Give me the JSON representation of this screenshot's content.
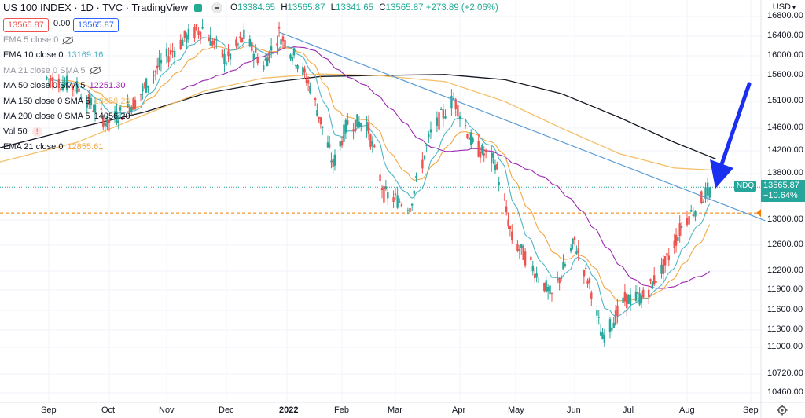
{
  "header": {
    "symbol": "US 100 INDEX · 1D · TVC · TradingView",
    "ohlc": [
      {
        "k": "O",
        "v": "13384.65"
      },
      {
        "k": "H",
        "v": "13565.87"
      },
      {
        "k": "L",
        "v": "13341.65"
      },
      {
        "k": "C",
        "v": "13565.87 +273.89 (+2.06%)"
      }
    ],
    "bid": "13565.87",
    "spread": "0.00",
    "ask": "13565.87"
  },
  "legend": [
    {
      "label": "EMA 5 close 0",
      "value": "",
      "color": "#9598a1",
      "faded": true,
      "icon": "eye-crossed-icon"
    },
    {
      "label": "EMA 10 close 0",
      "value": "13169.16",
      "color": "#4fb6c6",
      "faded": false,
      "icon": ""
    },
    {
      "label": "MA 21 close 0 SMA 5",
      "value": "",
      "color": "#9598a1",
      "faded": true,
      "icon": "eye-crossed-icon"
    },
    {
      "label": "MA 50 close 0 SMA 5",
      "value": "12251.30",
      "color": "#9c27b0",
      "faded": false,
      "icon": ""
    },
    {
      "label": "MA 150 close 0 SMA 5",
      "value": "13858.23",
      "color": "#f4c06a",
      "faded": false,
      "icon": ""
    },
    {
      "label": "MA 200 close 0 SMA 5",
      "value": "14056.20",
      "color": "#131722",
      "faded": false,
      "icon": ""
    },
    {
      "label": "Vol 50",
      "value": "",
      "color": "#131722",
      "faded": false,
      "icon": "warning-icon"
    },
    {
      "label": "EMA 21 close 0",
      "value": "12855.61",
      "color": "#f4a742",
      "faded": false,
      "icon": ""
    }
  ],
  "price_axis": {
    "currency": "USD",
    "labels": [
      "16800.00",
      "16400.00",
      "16000.00",
      "15600.00",
      "15100.00",
      "14600.00",
      "14200.00",
      "13800.00",
      "13000.00",
      "12600.00",
      "12200.00",
      "11900.00",
      "11600.00",
      "11300.00",
      "11000.00",
      "10720.00",
      "10460.00"
    ],
    "symbol_tag": "NDQ",
    "current_price": "13565.87",
    "current_change": "−10.64%"
  },
  "time_axis": {
    "labels": [
      "Sep",
      "Oct",
      "Nov",
      "Dec",
      "2022",
      "Feb",
      "Mar",
      "Apr",
      "May",
      "Jun",
      "Jul",
      "Aug",
      "Sep"
    ]
  },
  "colors": {
    "up": "#26a69a",
    "down": "#ef5350",
    "ema10": "#4fb6c6",
    "ema21": "#f4a742",
    "ma50": "#9c27b0",
    "ma150": "#f4c06a",
    "ma200": "#131722",
    "trendline": "#5b9bd5",
    "arrow": "#1a2ff0",
    "support": "#f57c00"
  },
  "chart_data": {
    "type": "candlestick",
    "y_range": [
      10400,
      16900
    ],
    "reference_lines": {
      "current_price": 13565.87,
      "horizontal_support": 13120
    },
    "trendline": [
      {
        "date": "2021-12-28",
        "price": 16480
      },
      {
        "date": "2022-09-08",
        "price": 12990
      }
    ],
    "candles_close": [
      {
        "date": "2021-08-31",
        "close": 15550
      },
      {
        "date": "2021-09-15",
        "close": 15360
      },
      {
        "date": "2021-09-30",
        "close": 14690
      },
      {
        "date": "2021-10-15",
        "close": 15090
      },
      {
        "date": "2021-10-29",
        "close": 15850
      },
      {
        "date": "2021-11-10",
        "close": 16350
      },
      {
        "date": "2021-11-19",
        "close": 16570
      },
      {
        "date": "2021-12-01",
        "close": 15900
      },
      {
        "date": "2021-12-10",
        "close": 16380
      },
      {
        "date": "2021-12-20",
        "close": 15800
      },
      {
        "date": "2021-12-28",
        "close": 16460
      },
      {
        "date": "2022-01-05",
        "close": 16000
      },
      {
        "date": "2022-01-14",
        "close": 15400
      },
      {
        "date": "2022-01-27",
        "close": 13950
      },
      {
        "date": "2022-02-04",
        "close": 14700
      },
      {
        "date": "2022-02-14",
        "close": 14700
      },
      {
        "date": "2022-02-23",
        "close": 13450
      },
      {
        "date": "2022-03-08",
        "close": 13250
      },
      {
        "date": "2022-03-18",
        "close": 14500
      },
      {
        "date": "2022-03-29",
        "close": 15150
      },
      {
        "date": "2022-04-08",
        "close": 14300
      },
      {
        "date": "2022-04-20",
        "close": 14000
      },
      {
        "date": "2022-04-29",
        "close": 12700
      },
      {
        "date": "2022-05-09",
        "close": 12300
      },
      {
        "date": "2022-05-20",
        "close": 11800
      },
      {
        "date": "2022-06-01",
        "close": 12650
      },
      {
        "date": "2022-06-10",
        "close": 11900
      },
      {
        "date": "2022-06-16",
        "close": 11150
      },
      {
        "date": "2022-06-28",
        "close": 11750
      },
      {
        "date": "2022-07-08",
        "close": 11800
      },
      {
        "date": "2022-07-20",
        "close": 12300
      },
      {
        "date": "2022-07-29",
        "close": 12900
      },
      {
        "date": "2022-08-05",
        "close": 13200
      },
      {
        "date": "2022-08-12",
        "close": 13565
      }
    ]
  }
}
